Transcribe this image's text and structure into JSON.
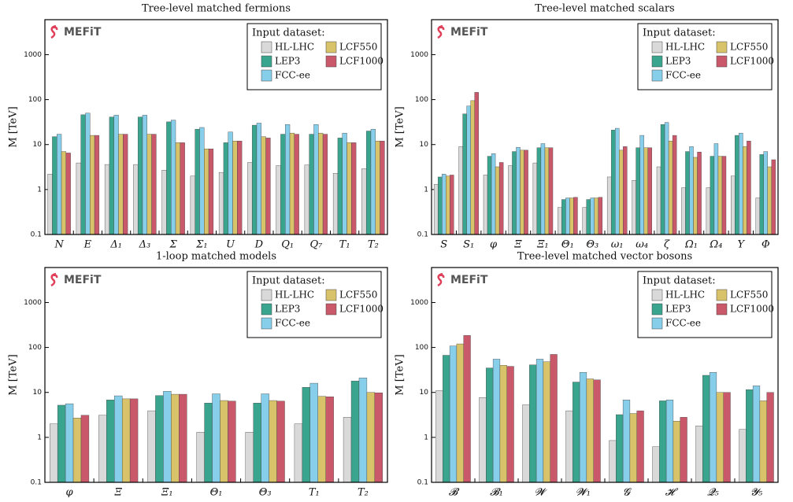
{
  "chart_data": [
    {
      "type": "bar",
      "title": "Tree-level matched fermions",
      "ylabel": "M [TeV]",
      "logo": "MEFiT",
      "log_scale": true,
      "ylim": [
        0.1,
        6000
      ],
      "yticks": [
        0.1,
        1,
        10,
        100,
        1000
      ],
      "legend_title": "Input dataset:",
      "legend": "upper right",
      "categories": [
        "N",
        "E",
        "Δ₁",
        "Δ₃",
        "Σ",
        "Σ₁",
        "U",
        "D",
        "Q₁",
        "Q₇",
        "T₁",
        "T₂"
      ],
      "series": [
        {
          "name": "HL-LHC",
          "color": "#d9d9d9",
          "values": [
            2.2,
            3.9,
            3.6,
            3.6,
            2.7,
            2.0,
            2.4,
            4.0,
            3.4,
            3.5,
            2.3,
            2.9
          ]
        },
        {
          "name": "LEP3",
          "color": "#3aa58e",
          "values": [
            15,
            46,
            41,
            41,
            32,
            22,
            11,
            27,
            17,
            17,
            14,
            20
          ]
        },
        {
          "name": "FCC-ee",
          "color": "#87ceeb",
          "values": [
            17,
            50,
            45,
            45,
            35,
            24,
            19,
            30,
            28,
            28,
            18,
            22
          ]
        },
        {
          "name": "LCF550",
          "color": "#d9c36a",
          "values": [
            7,
            16,
            17,
            17,
            11,
            8,
            12,
            15,
            18,
            18,
            11,
            12
          ]
        },
        {
          "name": "LCF1000",
          "color": "#c9586a",
          "values": [
            6.5,
            16,
            17,
            17,
            11,
            8,
            12,
            14,
            17,
            17,
            11,
            12
          ]
        }
      ]
    },
    {
      "type": "bar",
      "title": "Tree-level matched scalars",
      "ylabel": "M [TeV]",
      "logo": "MEFiT",
      "log_scale": true,
      "ylim": [
        0.1,
        6000
      ],
      "yticks": [
        0.1,
        1,
        10,
        100,
        1000
      ],
      "legend_title": "Input dataset:",
      "legend": "upper right",
      "categories": [
        "S",
        "S₁",
        "φ",
        "Ξ",
        "Ξ₁",
        "Θ₁",
        "Θ₃",
        "ω₁",
        "ω₄",
        "ζ",
        "Ω₁",
        "Ω₄",
        "Υ",
        "Φ"
      ],
      "series": [
        {
          "name": "HL-LHC",
          "color": "#d9d9d9",
          "values": [
            1.3,
            9,
            2.1,
            3.4,
            3.9,
            0.4,
            0.4,
            1.9,
            1.6,
            3.2,
            1.1,
            1.1,
            2.0,
            0.65
          ]
        },
        {
          "name": "LEP3",
          "color": "#3aa58e",
          "values": [
            1.9,
            48,
            5.5,
            7,
            8.5,
            0.6,
            0.6,
            21,
            8.5,
            28,
            7,
            5.5,
            16,
            6
          ]
        },
        {
          "name": "FCC-ee",
          "color": "#87ceeb",
          "values": [
            2.2,
            72,
            6.3,
            8.7,
            10.5,
            0.65,
            0.65,
            23,
            16,
            31,
            9,
            10.5,
            18,
            7
          ]
        },
        {
          "name": "LCF550",
          "color": "#d9c36a",
          "values": [
            2,
            95,
            3.2,
            7.5,
            8.5,
            0.65,
            0.65,
            7.5,
            8.5,
            12,
            5.2,
            5.5,
            9,
            3.2
          ]
        },
        {
          "name": "LCF1000",
          "color": "#c9586a",
          "values": [
            2.1,
            145,
            4,
            7.5,
            8.5,
            0.67,
            0.67,
            9,
            8.5,
            16,
            6.8,
            5.5,
            12,
            4.6
          ]
        }
      ]
    },
    {
      "type": "bar",
      "title": "1-loop matched models",
      "ylabel": "M [TeV]",
      "logo": "MEFiT",
      "log_scale": true,
      "ylim": [
        0.1,
        6000
      ],
      "yticks": [
        0.1,
        1,
        10,
        100,
        1000
      ],
      "legend_title": "Input dataset:",
      "legend": "upper right",
      "categories": [
        "φ",
        "Ξ",
        "Ξ₁",
        "Θ₁",
        "Θ₃",
        "T₁",
        "T₂"
      ],
      "series": [
        {
          "name": "HL-LHC",
          "color": "#d9d9d9",
          "values": [
            2.0,
            3.1,
            3.9,
            1.3,
            1.3,
            2.0,
            2.8
          ]
        },
        {
          "name": "LEP3",
          "color": "#3aa58e",
          "values": [
            5.2,
            6.8,
            8.5,
            5.8,
            5.8,
            13,
            18
          ]
        },
        {
          "name": "FCC-ee",
          "color": "#87ceeb",
          "values": [
            5.6,
            8.4,
            10.6,
            9.3,
            9.3,
            16,
            21
          ]
        },
        {
          "name": "LCF550",
          "color": "#d9c36a",
          "values": [
            2.7,
            7.2,
            9.1,
            6.6,
            6.6,
            8.2,
            10
          ]
        },
        {
          "name": "LCF1000",
          "color": "#c9586a",
          "values": [
            3.1,
            7.2,
            9.1,
            6.4,
            6.4,
            8.0,
            9.8
          ]
        }
      ]
    },
    {
      "type": "bar",
      "title": "Tree-level matched vector bosons",
      "ylabel": "M [TeV]",
      "logo": "MEFiT",
      "log_scale": true,
      "ylim": [
        0.1,
        6000
      ],
      "yticks": [
        0.1,
        1,
        10,
        100,
        1000
      ],
      "legend_title": "Input dataset:",
      "legend": "upper right",
      "categories": [
        "𝓑",
        "𝓑₁",
        "𝓦",
        "𝓦₁",
        "𝓖",
        "𝓗",
        "𝓠₅",
        "𝓨₅"
      ],
      "series": [
        {
          "name": "HL-LHC",
          "color": "#d9d9d9",
          "values": [
            11,
            7.7,
            5.3,
            3.9,
            0.85,
            0.62,
            1.8,
            1.5
          ]
        },
        {
          "name": "LEP3",
          "color": "#3aa58e",
          "values": [
            67,
            35,
            41,
            17,
            3.2,
            6.5,
            24,
            11.5
          ]
        },
        {
          "name": "FCC-ee",
          "color": "#87ceeb",
          "values": [
            108,
            55,
            55,
            28,
            6.8,
            6.8,
            28,
            14
          ]
        },
        {
          "name": "LCF550",
          "color": "#d9c36a",
          "values": [
            120,
            40,
            48,
            20,
            3.4,
            2.3,
            10,
            6.5
          ]
        },
        {
          "name": "LCF1000",
          "color": "#c9586a",
          "values": [
            185,
            38,
            70,
            19,
            3.9,
            2.8,
            10,
            10
          ]
        }
      ]
    }
  ]
}
